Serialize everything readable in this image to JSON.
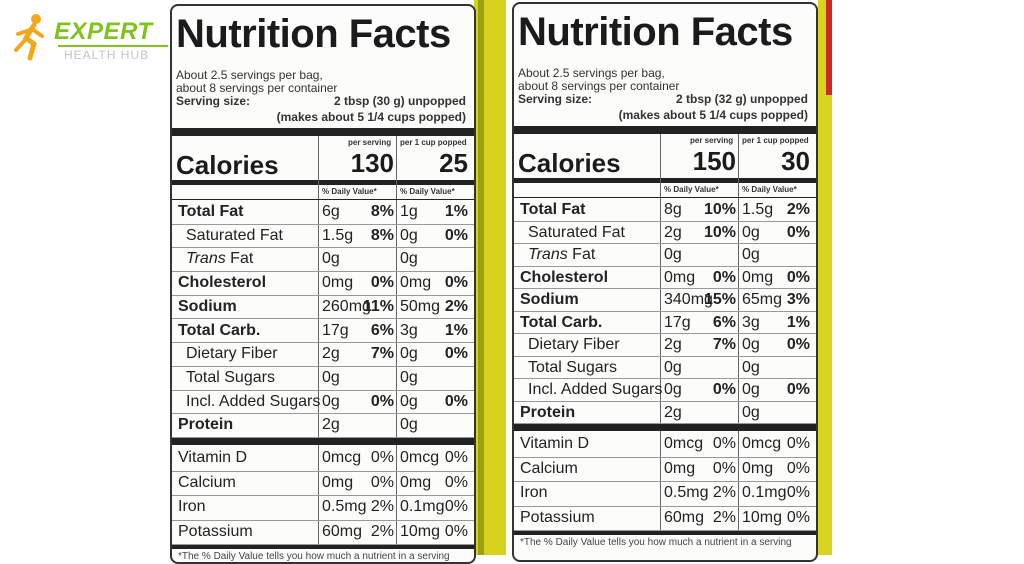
{
  "logo": {
    "brand": "EXPERT",
    "sub": "HEALTH HUB"
  },
  "panels": [
    {
      "title": "Nutrition Facts",
      "servings_line1": "About 2.5 servings per bag,",
      "servings_line2": "about 8 servings per container",
      "serving_size_label": "Serving size:",
      "serving_size_value": "2 tbsp (30 g) unpopped",
      "makes_line": "(makes about 5 1/4 cups popped)",
      "col1_header": "per serving",
      "col2_header": "per 1 cup popped",
      "calories_label": "Calories",
      "calories_col1": "130",
      "calories_col2": "25",
      "dv_label": "% Daily Value*",
      "rows": [
        {
          "name": "Total Fat",
          "bold": true,
          "indent": false,
          "a1": "6g",
          "p1": "8%",
          "a2": "1g",
          "p2": "1%"
        },
        {
          "name": "Saturated Fat",
          "bold": false,
          "indent": true,
          "a1": "1.5g",
          "p1": "8%",
          "a2": "0g",
          "p2": "0%"
        },
        {
          "name": "Trans Fat",
          "bold": false,
          "indent": true,
          "a1": "0g",
          "p1": "",
          "a2": "0g",
          "p2": ""
        },
        {
          "name": "Cholesterol",
          "bold": true,
          "indent": false,
          "a1": "0mg",
          "p1": "0%",
          "a2": "0mg",
          "p2": "0%"
        },
        {
          "name": "Sodium",
          "bold": true,
          "indent": false,
          "a1": "260mg",
          "p1": "11%",
          "a2": "50mg",
          "p2": "2%"
        },
        {
          "name": "Total Carb.",
          "bold": true,
          "indent": false,
          "a1": "17g",
          "p1": "6%",
          "a2": "3g",
          "p2": "1%"
        },
        {
          "name": "Dietary Fiber",
          "bold": false,
          "indent": true,
          "a1": "2g",
          "p1": "7%",
          "a2": "0g",
          "p2": "0%"
        },
        {
          "name": "Total Sugars",
          "bold": false,
          "indent": true,
          "a1": "0g",
          "p1": "",
          "a2": "0g",
          "p2": ""
        },
        {
          "name": "Incl. Added Sugars",
          "bold": false,
          "indent": true,
          "a1": "0g",
          "p1": "0%",
          "a2": "0g",
          "p2": "0%"
        },
        {
          "name": "Protein",
          "bold": true,
          "indent": false,
          "a1": "2g",
          "p1": "",
          "a2": "0g",
          "p2": ""
        }
      ],
      "vitamins": [
        {
          "name": "Vitamin D",
          "a1": "0mcg",
          "p1": "0%",
          "a2": "0mcg",
          "p2": "0%"
        },
        {
          "name": "Calcium",
          "a1": "0mg",
          "p1": "0%",
          "a2": "0mg",
          "p2": "0%"
        },
        {
          "name": "Iron",
          "a1": "0.5mg",
          "p1": "2%",
          "a2": "0.1mg",
          "p2": "0%"
        },
        {
          "name": "Potassium",
          "a1": "60mg",
          "p1": "2%",
          "a2": "10mg",
          "p2": "0%"
        }
      ],
      "footnote": "*The % Daily Value tells you how much a nutrient in a serving"
    },
    {
      "title": "Nutrition Facts",
      "servings_line1": "About 2.5 servings per bag,",
      "servings_line2": "about 8 servings per container",
      "serving_size_label": "Serving size:",
      "serving_size_value": "2 tbsp (32 g) unpopped",
      "makes_line": "(makes about 5 1/4 cups popped)",
      "col1_header": "per serving",
      "col2_header": "per 1 cup popped",
      "calories_label": "Calories",
      "calories_col1": "150",
      "calories_col2": "30",
      "dv_label": "% Daily Value*",
      "rows": [
        {
          "name": "Total Fat",
          "bold": true,
          "indent": false,
          "a1": "8g",
          "p1": "10%",
          "a2": "1.5g",
          "p2": "2%"
        },
        {
          "name": "Saturated Fat",
          "bold": false,
          "indent": true,
          "a1": "2g",
          "p1": "10%",
          "a2": "0g",
          "p2": "0%"
        },
        {
          "name": "Trans Fat",
          "bold": false,
          "indent": true,
          "a1": "0g",
          "p1": "",
          "a2": "0g",
          "p2": ""
        },
        {
          "name": "Cholesterol",
          "bold": true,
          "indent": false,
          "a1": "0mg",
          "p1": "0%",
          "a2": "0mg",
          "p2": "0%"
        },
        {
          "name": "Sodium",
          "bold": true,
          "indent": false,
          "a1": "340mg",
          "p1": "15%",
          "a2": "65mg",
          "p2": "3%"
        },
        {
          "name": "Total Carb.",
          "bold": true,
          "indent": false,
          "a1": "17g",
          "p1": "6%",
          "a2": "3g",
          "p2": "1%"
        },
        {
          "name": "Dietary Fiber",
          "bold": false,
          "indent": true,
          "a1": "2g",
          "p1": "7%",
          "a2": "0g",
          "p2": "0%"
        },
        {
          "name": "Total Sugars",
          "bold": false,
          "indent": true,
          "a1": "0g",
          "p1": "",
          "a2": "0g",
          "p2": ""
        },
        {
          "name": "Incl. Added Sugars",
          "bold": false,
          "indent": true,
          "a1": "0g",
          "p1": "0%",
          "a2": "0g",
          "p2": "0%"
        },
        {
          "name": "Protein",
          "bold": true,
          "indent": false,
          "a1": "2g",
          "p1": "",
          "a2": "0g",
          "p2": ""
        }
      ],
      "vitamins": [
        {
          "name": "Vitamin D",
          "a1": "0mcg",
          "p1": "0%",
          "a2": "0mcg",
          "p2": "0%"
        },
        {
          "name": "Calcium",
          "a1": "0mg",
          "p1": "0%",
          "a2": "0mg",
          "p2": "0%"
        },
        {
          "name": "Iron",
          "a1": "0.5mg",
          "p1": "2%",
          "a2": "0.1mg",
          "p2": "0%"
        },
        {
          "name": "Potassium",
          "a1": "60mg",
          "p1": "2%",
          "a2": "10mg",
          "p2": "0%"
        }
      ],
      "footnote": "*The % Daily Value tells you how much a nutrient in a serving"
    }
  ],
  "colors": {
    "brand_green": "#7fc31c",
    "package_red": "#cc2a22",
    "package_yellow": "#e2d825"
  }
}
